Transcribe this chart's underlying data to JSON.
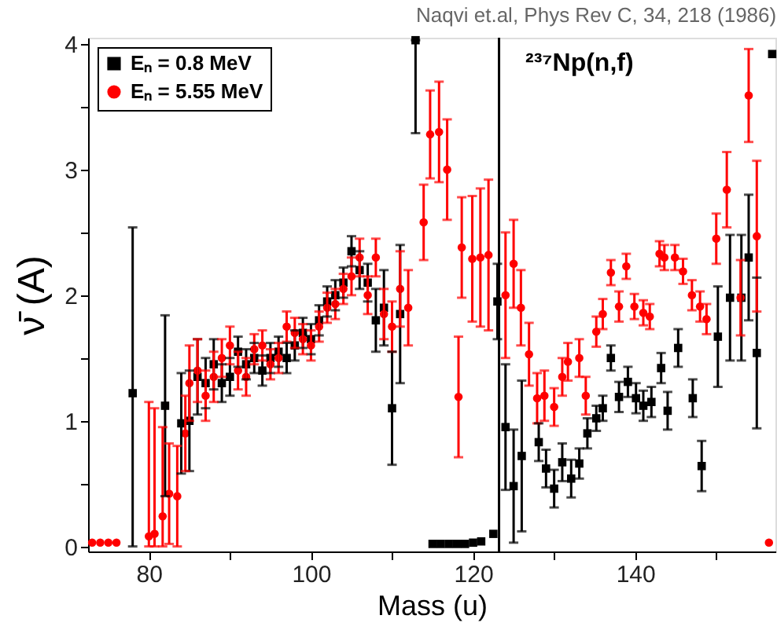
{
  "chart_data": {
    "type": "scatter",
    "xlabel": "Mass (u)",
    "ylabel": "ν̄ (A)",
    "annotations": [
      "Naqvi et.al, Phys Rev C, 34, 218 (1986)",
      "²³⁷Np(n,f)"
    ],
    "xlim": [
      72.5,
      157.3
    ],
    "ylim": [
      -0.04,
      4.05
    ],
    "xticks": [
      80,
      {
        "value": 90,
        "label": null
      },
      100,
      {
        "value": 110,
        "label": null
      },
      120,
      {
        "value": 130,
        "label": null
      },
      140,
      {
        "value": 150,
        "label": null
      }
    ],
    "yticks": [
      0,
      {
        "value": 0.5,
        "label": null
      },
      1,
      {
        "value": 1.5,
        "label": null
      },
      2,
      {
        "value": 2.5,
        "label": null
      },
      3,
      {
        "value": 3.5,
        "label": null
      },
      4
    ],
    "grid": false,
    "legend": "top left",
    "ref_lines": [
      {
        "axis": "x",
        "value": 123.2,
        "color": "#000000",
        "line_style": "solid"
      }
    ],
    "series": [
      {
        "name": "Eₙ = 0.8 MeV",
        "color": "#000000",
        "marker": "square",
        "x": [
          78,
          82,
          84,
          85,
          86,
          87,
          88,
          89,
          90,
          91,
          92,
          93,
          94,
          95,
          96,
          97,
          98,
          99,
          100,
          101,
          102,
          103,
          104,
          105,
          106,
          107,
          108,
          109,
          110,
          111,
          112.9,
          115,
          116,
          117,
          118,
          119,
          120,
          121,
          122.5,
          123,
          124,
          125,
          126,
          128.1,
          129,
          130,
          131,
          132.1,
          133.1,
          134.1,
          135.2,
          136,
          137,
          138,
          139.1,
          140.1,
          141,
          142,
          143.2,
          144,
          145.3,
          147.1,
          148.2,
          150.2,
          151.7,
          153.1,
          154,
          155,
          156.9
        ],
        "values": [
          1.22,
          1.12,
          0.98,
          1.0,
          1.35,
          1.3,
          1.45,
          1.3,
          1.35,
          1.55,
          1.45,
          1.5,
          1.4,
          1.5,
          1.55,
          1.5,
          1.6,
          1.7,
          1.65,
          1.8,
          1.95,
          2.0,
          2.1,
          2.35,
          2.2,
          2.1,
          1.8,
          1.9,
          1.1,
          1.85,
          4.03,
          0.02,
          0.02,
          0.02,
          0.02,
          0.02,
          0.03,
          0.04,
          0.1,
          1.95,
          0.95,
          0.48,
          0.72,
          0.83,
          0.62,
          0.46,
          0.67,
          0.54,
          0.66,
          0.9,
          1.02,
          1.1,
          1.5,
          1.19,
          1.31,
          1.18,
          1.12,
          1.15,
          1.42,
          1.08,
          1.58,
          1.18,
          0.64,
          1.67,
          1.98,
          1.98,
          2.3,
          1.54,
          3.92
        ],
        "errors": [
          [
            0,
            2.54
          ],
          0.72,
          0.4,
          0.4,
          0.3,
          0.2,
          0.2,
          0.15,
          0.15,
          0.12,
          0.12,
          0.12,
          0.12,
          0.12,
          0.12,
          0.12,
          0.12,
          0.12,
          0.12,
          0.12,
          0.12,
          0.12,
          0.12,
          0.12,
          0.15,
          0.15,
          0.25,
          0.3,
          0.45,
          0.55,
          [
            3.29,
            4.03
          ],
          null,
          null,
          null,
          null,
          null,
          null,
          null,
          null,
          0.3,
          0.5,
          0.45,
          0.6,
          0.15,
          0.15,
          0.15,
          0.15,
          0.15,
          0.12,
          0.12,
          0.1,
          0.1,
          0.1,
          0.12,
          0.12,
          0.12,
          0.12,
          0.12,
          0.12,
          0.15,
          0.15,
          0.15,
          0.2,
          0.4,
          0.5,
          0.5,
          0.5,
          0.6,
          null
        ]
      },
      {
        "name": "Eₙ = 5.55 MeV",
        "color": "#ff0000",
        "marker": "circle",
        "x": [
          73,
          74,
          75,
          76,
          80,
          80.7,
          81.7,
          82.5,
          83.5,
          84.5,
          85,
          86,
          87,
          88,
          89,
          90,
          91,
          92,
          93,
          94,
          95,
          96,
          97,
          98,
          99,
          100,
          101,
          102,
          103,
          104,
          105,
          106,
          107,
          108,
          109,
          110,
          111,
          112,
          113.9,
          114.7,
          115.8,
          116.8,
          118.2,
          118.6,
          119.9,
          120.9,
          121.9,
          124,
          125,
          125.9,
          126.9,
          127.9,
          128.8,
          130,
          131,
          131.7,
          133.1,
          133.9,
          135.2,
          136,
          137,
          138,
          138.9,
          139.9,
          141,
          141.8,
          143,
          143.6,
          144.9,
          145.9,
          147,
          148,
          148.8,
          150,
          151.3,
          153,
          154,
          155,
          156.5
        ],
        "values": [
          0.03,
          0.03,
          0.03,
          0.03,
          0.08,
          0.1,
          0.24,
          0.42,
          0.4,
          0.9,
          1.3,
          1.4,
          1.2,
          1.35,
          1.5,
          1.6,
          1.4,
          1.35,
          1.57,
          1.6,
          1.45,
          1.5,
          1.75,
          1.7,
          1.65,
          1.6,
          1.75,
          1.9,
          1.93,
          2.05,
          2.15,
          2.3,
          2.0,
          2.3,
          1.85,
          1.75,
          2.05,
          1.9,
          2.58,
          3.28,
          3.3,
          3.0,
          1.19,
          2.38,
          2.29,
          2.3,
          2.32,
          2.0,
          2.25,
          1.9,
          1.53,
          1.18,
          1.2,
          1.11,
          1.35,
          1.47,
          1.5,
          1.2,
          1.71,
          1.85,
          2.18,
          1.91,
          2.23,
          1.91,
          1.86,
          1.83,
          2.33,
          2.3,
          2.3,
          2.19,
          2.0,
          1.91,
          1.81,
          2.45,
          2.84,
          1.98,
          3.59,
          2.47,
          0.03
        ],
        "errors": [
          null,
          null,
          null,
          null,
          [
            0,
            1.15
          ],
          [
            0,
            1.1
          ],
          [
            0,
            0.95
          ],
          0.4,
          0.4,
          0.3,
          0.3,
          0.25,
          0.2,
          0.2,
          0.15,
          0.15,
          0.15,
          0.15,
          0.12,
          0.12,
          0.12,
          0.12,
          0.12,
          0.12,
          0.12,
          0.12,
          0.12,
          0.12,
          0.12,
          0.12,
          0.15,
          0.15,
          0.15,
          0.15,
          0.2,
          0.2,
          0.3,
          0.3,
          0.3,
          0.35,
          0.4,
          0.4,
          0.48,
          0.4,
          0.5,
          0.55,
          0.6,
          0.5,
          0.35,
          0.3,
          0.25,
          0.2,
          0.2,
          0.15,
          0.15,
          0.15,
          0.15,
          0.15,
          0.12,
          0.12,
          0.1,
          0.12,
          0.1,
          0.1,
          0.1,
          0.1,
          0.1,
          0.1,
          0.1,
          0.1,
          0.12,
          0.12,
          0.12,
          0.2,
          0.3,
          0.3,
          0.37,
          0.6,
          null
        ]
      }
    ]
  }
}
